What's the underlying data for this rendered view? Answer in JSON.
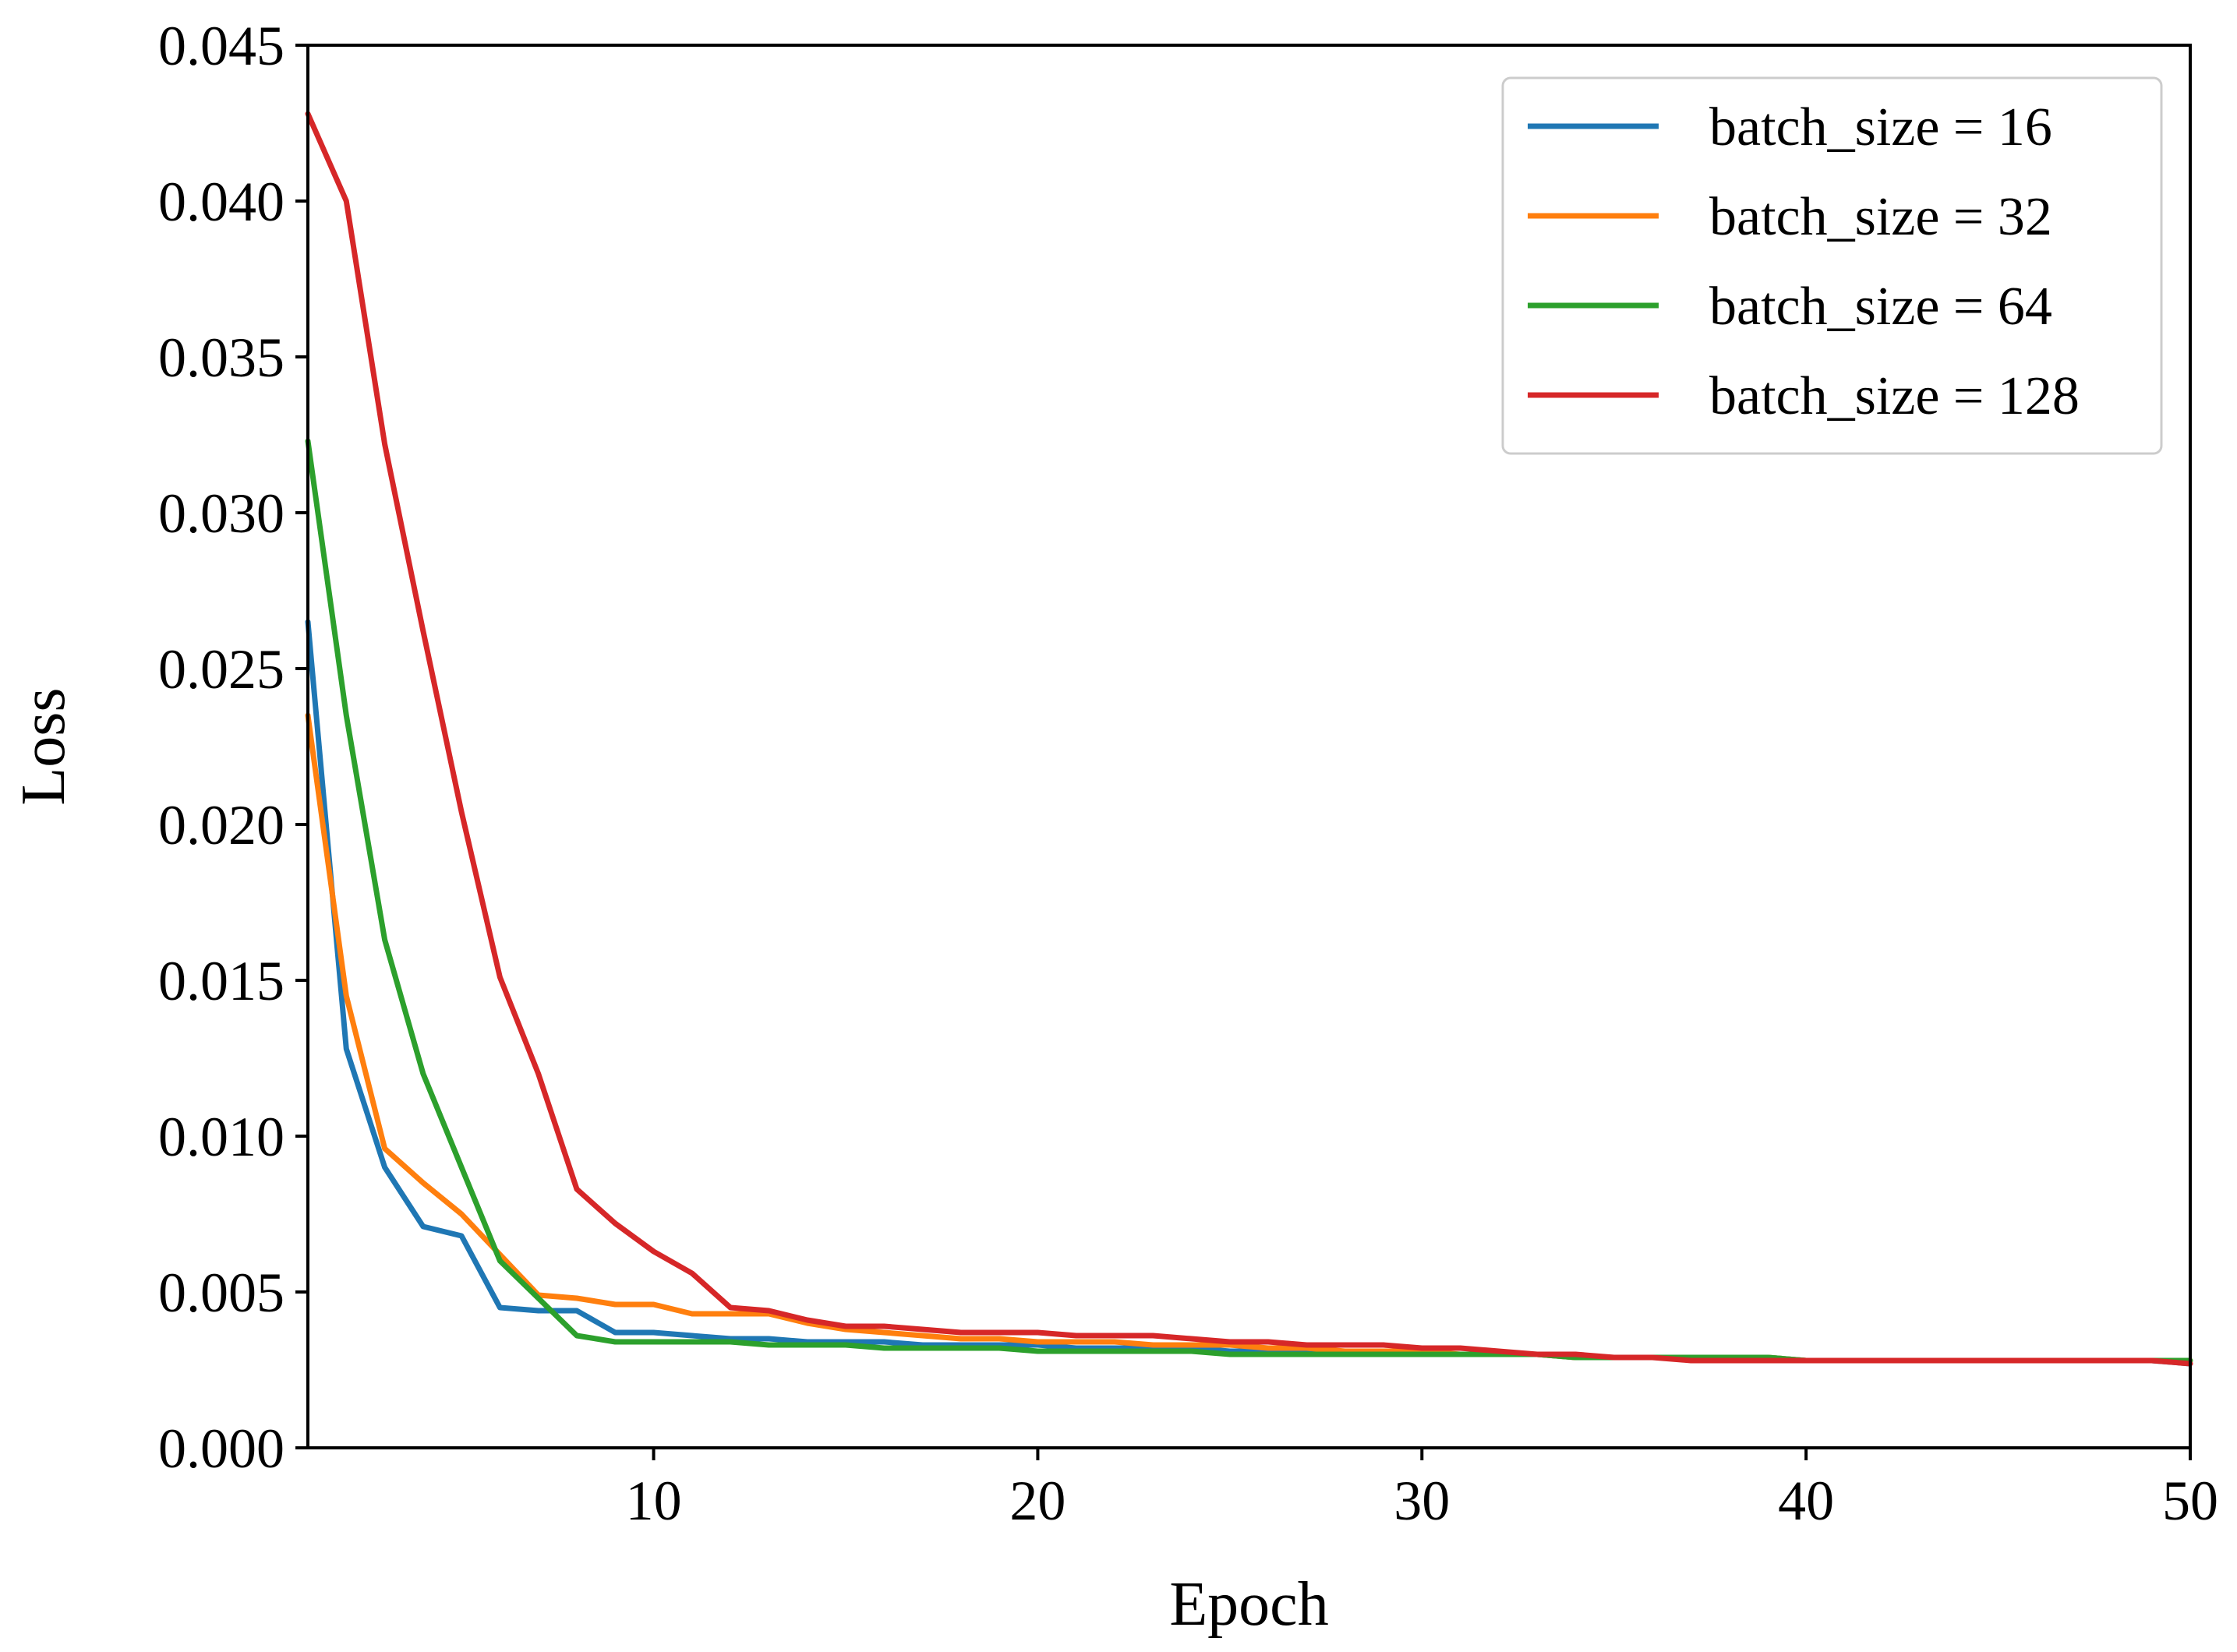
{
  "chart_data": {
    "type": "line",
    "title": "",
    "xlabel": "Epoch",
    "ylabel": "Loss",
    "xlim": [
      1,
      50
    ],
    "ylim": [
      0,
      0.045
    ],
    "x_ticks": [
      10,
      20,
      30,
      40,
      50
    ],
    "x_tick_labels": [
      "10",
      "20",
      "30",
      "40",
      "50"
    ],
    "y_ticks": [
      0,
      0.005,
      0.01,
      0.015,
      0.02,
      0.025,
      0.03,
      0.035,
      0.04,
      0.045
    ],
    "y_tick_labels": [
      "0.000",
      "0.005",
      "0.010",
      "0.015",
      "0.020",
      "0.025",
      "0.030",
      "0.035",
      "0.040",
      "0.045"
    ],
    "grid": false,
    "legend_position": "top-right",
    "x": [
      1,
      2,
      3,
      4,
      5,
      6,
      7,
      8,
      9,
      10,
      11,
      12,
      13,
      14,
      15,
      16,
      17,
      18,
      19,
      20,
      21,
      22,
      23,
      24,
      25,
      26,
      27,
      28,
      29,
      30,
      31,
      32,
      33,
      34,
      35,
      36,
      37,
      38,
      39,
      40,
      41,
      42,
      43,
      44,
      45,
      46,
      47,
      48,
      49,
      50
    ],
    "series": [
      {
        "name": "batch_size = 16",
        "color": "#1f77b4",
        "values": [
          0.0265,
          0.0128,
          0.009,
          0.0071,
          0.0068,
          0.0045,
          0.0044,
          0.0044,
          0.0037,
          0.0037,
          0.0036,
          0.0035,
          0.0035,
          0.0034,
          0.0034,
          0.0034,
          0.0033,
          0.0033,
          0.0033,
          0.0033,
          0.0032,
          0.0032,
          0.0032,
          0.0032,
          0.0031,
          0.0031,
          0.0031,
          0.0031,
          0.0031,
          0.003,
          0.003,
          0.003,
          0.003,
          0.0029,
          0.0029,
          0.0029,
          0.0029,
          0.0029,
          0.0029,
          0.0028,
          0.0028,
          0.0028,
          0.0028,
          0.0028,
          0.0028,
          0.0028,
          0.0028,
          0.0028,
          0.0028,
          0.0027
        ]
      },
      {
        "name": "batch_size = 32",
        "color": "#ff7f0e",
        "values": [
          0.0235,
          0.0145,
          0.0096,
          0.0085,
          0.0075,
          0.0062,
          0.0049,
          0.0048,
          0.0046,
          0.0046,
          0.0043,
          0.0043,
          0.0043,
          0.004,
          0.0038,
          0.0037,
          0.0036,
          0.0035,
          0.0035,
          0.0034,
          0.0034,
          0.0034,
          0.0033,
          0.0033,
          0.0033,
          0.0032,
          0.0032,
          0.0031,
          0.0031,
          0.0031,
          0.003,
          0.003,
          0.003,
          0.0029,
          0.0029,
          0.0029,
          0.0029,
          0.0029,
          0.0029,
          0.0028,
          0.0028,
          0.0028,
          0.0028,
          0.0028,
          0.0028,
          0.0028,
          0.0028,
          0.0028,
          0.0028,
          0.0028
        ]
      },
      {
        "name": "batch_size = 64",
        "color": "#2ca02c",
        "values": [
          0.0323,
          0.0235,
          0.0163,
          0.012,
          0.009,
          0.006,
          0.0048,
          0.0036,
          0.0034,
          0.0034,
          0.0034,
          0.0034,
          0.0033,
          0.0033,
          0.0033,
          0.0032,
          0.0032,
          0.0032,
          0.0032,
          0.0031,
          0.0031,
          0.0031,
          0.0031,
          0.0031,
          0.003,
          0.003,
          0.003,
          0.003,
          0.003,
          0.003,
          0.003,
          0.003,
          0.003,
          0.0029,
          0.0029,
          0.0029,
          0.0029,
          0.0029,
          0.0029,
          0.0028,
          0.0028,
          0.0028,
          0.0028,
          0.0028,
          0.0028,
          0.0028,
          0.0028,
          0.0028,
          0.0028,
          0.0028
        ]
      },
      {
        "name": "batch_size = 128",
        "color": "#d62728",
        "values": [
          0.0428,
          0.04,
          0.0322,
          0.0262,
          0.0204,
          0.0151,
          0.012,
          0.0083,
          0.0072,
          0.0063,
          0.0056,
          0.0045,
          0.0044,
          0.0041,
          0.0039,
          0.0039,
          0.0038,
          0.0037,
          0.0037,
          0.0037,
          0.0036,
          0.0036,
          0.0036,
          0.0035,
          0.0034,
          0.0034,
          0.0033,
          0.0033,
          0.0033,
          0.0032,
          0.0032,
          0.0031,
          0.003,
          0.003,
          0.0029,
          0.0029,
          0.0028,
          0.0028,
          0.0028,
          0.0028,
          0.0028,
          0.0028,
          0.0028,
          0.0028,
          0.0028,
          0.0028,
          0.0028,
          0.0028,
          0.0028,
          0.0027
        ]
      }
    ]
  }
}
